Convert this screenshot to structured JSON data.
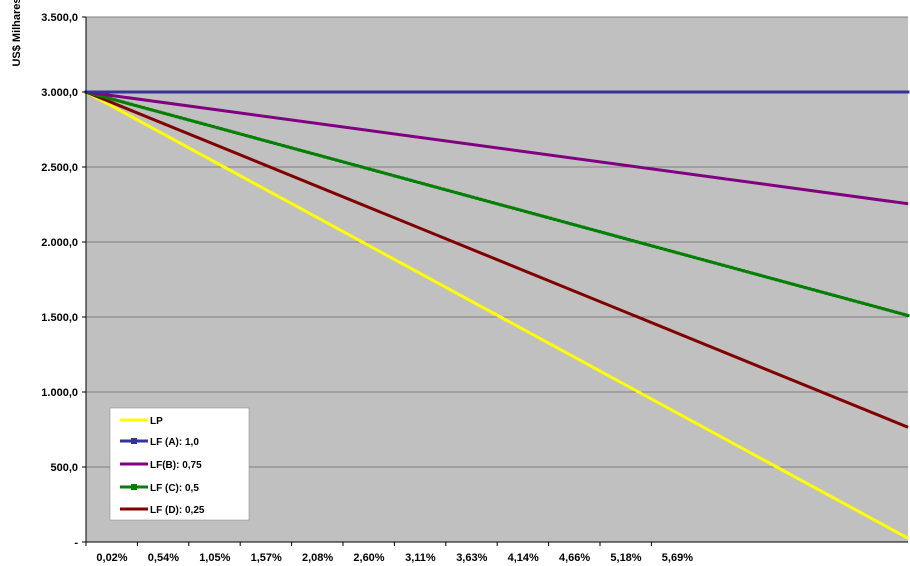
{
  "chart_data": {
    "type": "line",
    "title": "",
    "xlabel": "",
    "ylabel": "US$ Milhares",
    "ylim": [
      0,
      3500
    ],
    "y_ticks": [
      0,
      500,
      1000,
      1500,
      2000,
      2500,
      3000,
      3500
    ],
    "y_tick_labels": [
      "-",
      "500,0",
      "1.000,0",
      "1.500,0",
      "2.000,0",
      "2.500,0",
      "3.000,0",
      "3.500,0"
    ],
    "x_tick_labels": [
      "0,02%",
      "0,54%",
      "1,05%",
      "1,57%",
      "2,08%",
      "2,60%",
      "3,11%",
      "3,63%",
      "4,14%",
      "4,66%",
      "5,18%",
      "5,69%"
    ],
    "x_range_percent": [
      0.02,
      6.0
    ],
    "grid": "horizontal",
    "plot_background": "#c0c0c0",
    "legend_position": "bottom-left",
    "series": [
      {
        "name": "LP",
        "color": "#ffff00",
        "marker": "none",
        "x": [
          0.02,
          6.0
        ],
        "values": [
          3000,
          25
        ]
      },
      {
        "name": "LF (A): 1,0",
        "color": "#333399",
        "marker": "square",
        "x": [
          0.02,
          6.0
        ],
        "values": [
          3000,
          3000
        ]
      },
      {
        "name": "LF(B): 0,75",
        "color": "#800080",
        "marker": "none",
        "x": [
          0.02,
          6.0
        ],
        "values": [
          3000,
          2255
        ]
      },
      {
        "name": "LF (C): 0,5",
        "color": "#008000",
        "marker": "square",
        "x": [
          0.02,
          6.0
        ],
        "values": [
          3000,
          1510
        ]
      },
      {
        "name": "LF (D): 0,25",
        "color": "#800000",
        "marker": "none",
        "x": [
          0.02,
          6.0
        ],
        "values": [
          3000,
          765
        ]
      }
    ]
  }
}
